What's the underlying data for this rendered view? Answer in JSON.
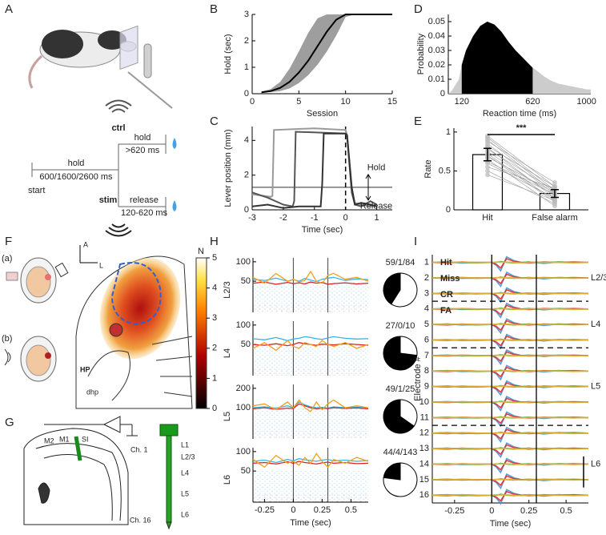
{
  "panel_labels": [
    "A",
    "B",
    "C",
    "D",
    "E",
    "F",
    "G",
    "H",
    "I"
  ],
  "task": {
    "hold": "hold",
    "pre_duration": "600/1600/2600 ms",
    "start": "start",
    "ctrl": "ctrl",
    "ctrl_action": "hold",
    "ctrl_duration": ">620 ms",
    "stim": "stim",
    "stim_action": "release",
    "stim_duration": "120-620 ms"
  },
  "chart_data": [
    {
      "type": "line",
      "xlabel": "Session",
      "ylabel": "Hold (sec)",
      "x": [
        1,
        2,
        3,
        4,
        5,
        6,
        7,
        8,
        9,
        10,
        11,
        12,
        13,
        14,
        15
      ],
      "series": [
        {
          "color": "#000000",
          "band_color": "#9e9e9e",
          "values": [
            0.05,
            0.1,
            0.22,
            0.45,
            0.8,
            1.25,
            1.8,
            2.35,
            2.8,
            3,
            3,
            3,
            3,
            3,
            3
          ],
          "band_low": [
            0.03,
            0.06,
            0.1,
            0.2,
            0.4,
            0.7,
            1.1,
            1.6,
            2.2,
            2.9,
            3,
            3,
            3,
            3,
            3
          ],
          "band_high": [
            0.08,
            0.18,
            0.45,
            0.95,
            1.6,
            2.3,
            2.85,
            3,
            3,
            3,
            3,
            3,
            3,
            3,
            3
          ]
        }
      ],
      "xlim": [
        0,
        15
      ],
      "xticks": [
        0,
        5,
        10,
        15
      ],
      "ylim": [
        0,
        3
      ],
      "yticks": [
        0,
        1,
        2,
        3
      ]
    },
    {
      "type": "line",
      "xlabel": "Time (sec)",
      "ylabel": "Lever position (mm)",
      "series": [
        {
          "color": "#9a9a9a",
          "x": [
            -3,
            -2.6,
            -2.4,
            -2.35,
            -2.3,
            -1,
            0,
            0.05,
            0.2,
            0.3,
            0.5,
            0.8,
            1
          ],
          "values": [
            0.9,
            0.8,
            0.75,
            0.8,
            4.6,
            4.7,
            4.6,
            4.3,
            1.2,
            0.4,
            0.3,
            0.2,
            0.3
          ]
        },
        {
          "color": "#555555",
          "x": [
            -3,
            -2.5,
            -2,
            -1.7,
            -1.65,
            -1.6,
            0,
            0.05,
            0.2,
            0.3,
            0.5,
            0.8,
            1
          ],
          "values": [
            1.0,
            0.7,
            0.3,
            0.2,
            0.5,
            4.5,
            4.4,
            4.2,
            1.0,
            0.3,
            0.2,
            0.5,
            0.3
          ]
        },
        {
          "color": "#333333",
          "x": [
            -3,
            -2.5,
            -2,
            -1.5,
            -1,
            -0.8,
            -0.75,
            -0.7,
            0,
            0.05,
            0.2,
            0.3,
            0.5,
            0.8,
            1
          ],
          "values": [
            0.2,
            0.3,
            0.1,
            0.2,
            0.2,
            0.2,
            1.5,
            4.4,
            4.4,
            4.3,
            1.3,
            0.3,
            0.4,
            0.3,
            0.2
          ]
        }
      ],
      "threshold": 1.3,
      "event": 0,
      "annotations": [
        "Hold",
        "Release"
      ],
      "xlim": [
        -3,
        1.5
      ],
      "xticks": [
        -3,
        -2,
        -1,
        0,
        1
      ],
      "ylim": [
        0,
        4.8
      ],
      "yticks": [
        0,
        2,
        4
      ]
    },
    {
      "type": "area",
      "xlabel": "Reaction time (ms)",
      "ylabel": "Probability",
      "x": [
        25,
        50,
        100,
        120,
        150,
        200,
        250,
        300,
        350,
        400,
        450,
        500,
        550,
        600,
        620,
        650,
        700,
        750,
        800,
        850,
        900,
        950,
        1000,
        1030
      ],
      "values": [
        0,
        0.002,
        0.01,
        0.02,
        0.03,
        0.04,
        0.047,
        0.05,
        0.048,
        0.043,
        0.036,
        0.03,
        0.025,
        0.02,
        0.018,
        0.016,
        0.012,
        0.009,
        0.007,
        0.006,
        0.005,
        0.004,
        0.003,
        0.003
      ],
      "color": "#cccccc",
      "window": [
        120,
        620
      ],
      "window_color": "#000000",
      "xlim": [
        25,
        1030
      ],
      "xticks": [
        120,
        620,
        1000
      ],
      "ylim": [
        0,
        0.055
      ],
      "yticks": [
        0,
        0.01,
        0.02,
        0.03,
        0.04,
        0.05
      ]
    },
    {
      "type": "bar",
      "ylabel": "Rate",
      "categories": [
        "Hit",
        "False alarm"
      ],
      "values": [
        0.71,
        0.21
      ],
      "errors": [
        0.08,
        0.05
      ],
      "subjects": [
        [
          0.95,
          0.3
        ],
        [
          0.93,
          0.25
        ],
        [
          0.9,
          0.22
        ],
        [
          0.88,
          0.35
        ],
        [
          0.85,
          0.2
        ],
        [
          0.82,
          0.3
        ],
        [
          0.8,
          0.15
        ],
        [
          0.78,
          0.25
        ],
        [
          0.75,
          0.18
        ],
        [
          0.72,
          0.12
        ],
        [
          0.7,
          0.1
        ],
        [
          0.68,
          0.22
        ],
        [
          0.65,
          0.05
        ],
        [
          0.62,
          0.2
        ],
        [
          0.6,
          0.15
        ],
        [
          0.55,
          0.28
        ],
        [
          0.5,
          0.08
        ],
        [
          0.45,
          0.12
        ]
      ],
      "significance": "***",
      "ylim": [
        0,
        1.05
      ],
      "yticks": [
        0,
        0.5,
        1
      ]
    }
  ],
  "brain_map": {
    "colorbar_label": "N",
    "clim": [
      0,
      5
    ],
    "cticks": [
      0,
      1,
      2,
      3,
      4,
      5
    ],
    "labels": {
      "a": "(a)",
      "b": "(b)",
      "anterior": "A",
      "lateral": "L",
      "hp": "HP",
      "dhp": "dhp"
    }
  },
  "probe": {
    "areas": [
      "M2",
      "M1",
      "SI"
    ],
    "first_channel": "Ch. 1",
    "last_channel": "Ch. 16",
    "layers": [
      "L1",
      "L2/3",
      "L4",
      "L5",
      "L6"
    ]
  },
  "psth": {
    "xlabel": "Time (sec)",
    "xlim": [
      -0.35,
      0.65
    ],
    "xticks": [
      -0.25,
      0,
      0.25,
      0.5
    ],
    "events": [
      0,
      0.3
    ],
    "x": [
      -0.35,
      -0.25,
      -0.15,
      -0.05,
      0,
      0.05,
      0.1,
      0.15,
      0.2,
      0.25,
      0.3,
      0.35,
      0.45,
      0.55,
      0.65
    ],
    "rows": [
      {
        "layer": "L2/3",
        "ylim": [
          -30,
          110
        ],
        "yticks": [
          50,
          100
        ],
        "counts_label": "59/1/84",
        "counts": [
          59,
          1,
          84
        ],
        "series": [
          {
            "color": "#36b5e5",
            "values": [
              55,
              52,
              58,
              50,
              54,
              50,
              57,
              53,
              49,
              55,
              58,
              60,
              52,
              56,
              54
            ]
          },
          {
            "color": "#e02020",
            "values": [
              45,
              48,
              42,
              47,
              44,
              46,
              43,
              48,
              45,
              47,
              42,
              44,
              46,
              43,
              45
            ]
          },
          {
            "color": "#f0a020",
            "values": [
              60,
              45,
              70,
              50,
              55,
              48,
              52,
              75,
              50,
              45,
              65,
              70,
              55,
              60,
              50
            ]
          }
        ]
      },
      {
        "layer": "L4",
        "ylim": [
          -30,
          110
        ],
        "yticks": [
          50,
          100
        ],
        "counts_label": "27/0/10",
        "counts": [
          27,
          0,
          10
        ],
        "series": [
          {
            "color": "#36b5e5",
            "values": [
              65,
              62,
              68,
              60,
              64,
              66,
              70,
              68,
              65,
              63,
              67,
              70,
              66,
              64,
              65
            ]
          },
          {
            "color": "#e02020",
            "values": [
              50,
              48,
              52,
              47,
              50,
              55,
              52,
              50,
              48,
              51,
              50,
              49,
              52,
              50,
              48
            ]
          },
          {
            "color": "#f0a020",
            "values": [
              40,
              55,
              35,
              60,
              45,
              40,
              55,
              50,
              45,
              60,
              50,
              45,
              55,
              40,
              50
            ]
          }
        ]
      },
      {
        "layer": "L5",
        "ylim": [
          -60,
          220
        ],
        "yticks": [
          100,
          200
        ],
        "counts_label": "49/1/25",
        "counts": [
          49,
          1,
          25
        ],
        "series": [
          {
            "color": "#36b5e5",
            "values": [
              100,
              105,
              98,
              110,
              100,
              130,
              115,
              105,
              100,
              102,
              98,
              105,
              100,
              103,
              100
            ]
          },
          {
            "color": "#e02020",
            "values": [
              95,
              100,
              92,
              98,
              96,
              120,
              110,
              100,
              95,
              98,
              96,
              100,
              97,
              99,
              95
            ]
          },
          {
            "color": "#f0a020",
            "values": [
              110,
              120,
              90,
              130,
              100,
              140,
              100,
              80,
              130,
              90,
              120,
              140,
              100,
              110,
              100
            ]
          }
        ]
      },
      {
        "layer": "L6",
        "ylim": [
          -30,
          110
        ],
        "yticks": [
          50,
          100
        ],
        "counts_label": "44/4/143",
        "counts": [
          44,
          4,
          143
        ],
        "series": [
          {
            "color": "#36b5e5",
            "values": [
              75,
              78,
              72,
              80,
              76,
              82,
              79,
              77,
              75,
              78,
              80,
              76,
              78,
              75,
              77
            ]
          },
          {
            "color": "#e02020",
            "values": [
              70,
              72,
              68,
              74,
              70,
              75,
              72,
              70,
              68,
              71,
              73,
              70,
              72,
              69,
              70
            ]
          },
          {
            "color": "#f0a020",
            "values": [
              80,
              60,
              90,
              70,
              75,
              65,
              85,
              70,
              95,
              75,
              60,
              80,
              70,
              85,
              75
            ]
          }
        ]
      }
    ]
  },
  "lfp": {
    "xlabel": "Time (sec)",
    "ylabel": "Electrode #",
    "xlim": [
      -0.4,
      0.65
    ],
    "xticks": [
      -0.25,
      0,
      0.25,
      0.5
    ],
    "events": [
      0,
      0.3
    ],
    "electrodes": [
      1,
      2,
      3,
      4,
      5,
      6,
      7,
      8,
      9,
      10,
      11,
      12,
      13,
      14,
      15,
      16
    ],
    "layer_bounds": [
      3.5,
      6.5,
      11.5
    ],
    "layer_labels": [
      "L2/3",
      "L4",
      "L5",
      "L6"
    ],
    "row_ylim": [
      -1,
      1
    ],
    "x": [
      -0.4,
      -0.3,
      -0.2,
      -0.1,
      0,
      0.03,
      0.06,
      0.1,
      0.15,
      0.2,
      0.25,
      0.3,
      0.35,
      0.45,
      0.55,
      0.65
    ],
    "series": [
      {
        "name": "Hit",
        "color": "#3a8fd8",
        "values": [
          0,
          0.05,
          -0.05,
          0,
          0,
          -0.3,
          -0.9,
          0.6,
          0.2,
          0,
          0.05,
          0,
          -0.1,
          0.05,
          0,
          0
        ]
      },
      {
        "name": "Miss",
        "color": "#e02020",
        "values": [
          0,
          -0.05,
          0.05,
          0,
          0,
          -0.2,
          -0.6,
          0.4,
          0.1,
          0,
          -0.05,
          0,
          0.05,
          0,
          0.05,
          0
        ]
      },
      {
        "name": "CR",
        "color": "#5ab030",
        "values": [
          0,
          0.05,
          0,
          -0.05,
          0,
          0,
          0.1,
          0,
          -0.05,
          0,
          0.05,
          0,
          0,
          0.05,
          0,
          0
        ]
      },
      {
        "name": "FA",
        "color": "#f0b030",
        "values": [
          0,
          0,
          0.05,
          0,
          0,
          0.05,
          0,
          0.05,
          0,
          -0.05,
          0,
          0.05,
          0,
          0,
          -0.05,
          0
        ]
      }
    ]
  }
}
